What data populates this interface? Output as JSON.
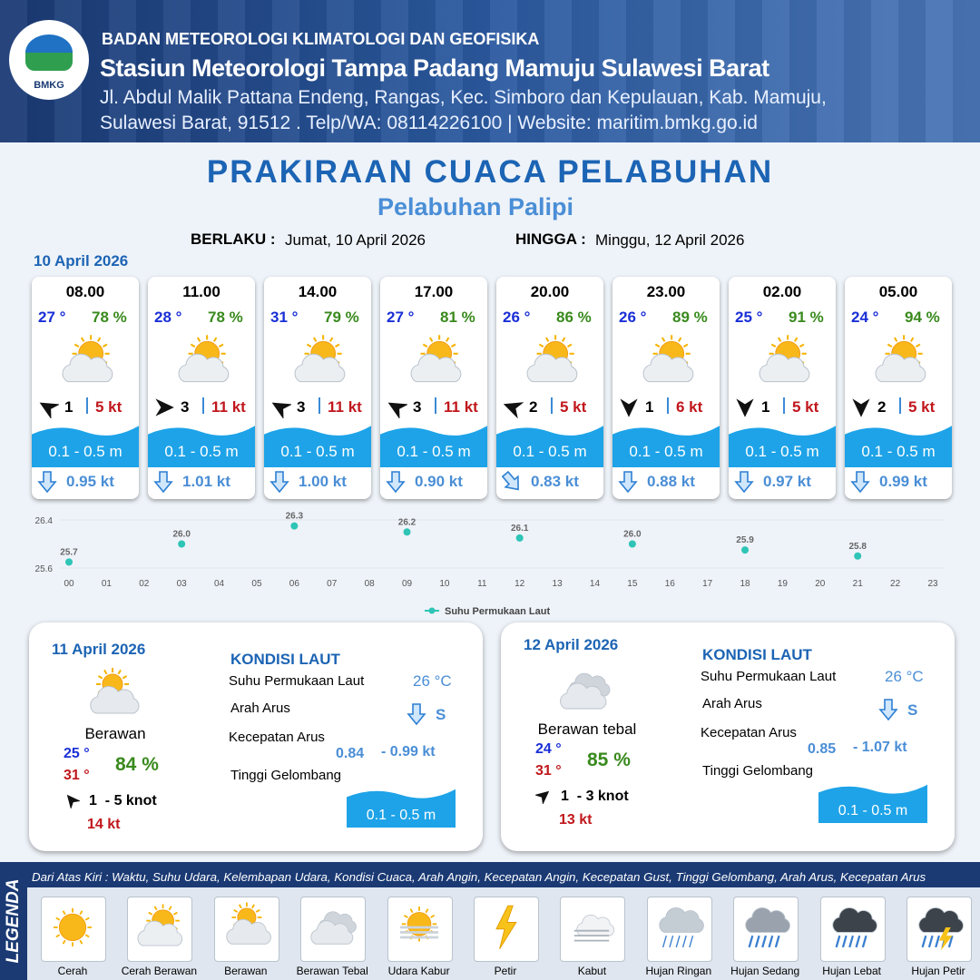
{
  "header": {
    "logo": "BMKG",
    "agency": "BADAN METEOROLOGI KLIMATOLOGI DAN GEOFISIKA",
    "station": "Stasiun Meteorologi Tampa Padang Mamuju Sulawesi Barat",
    "address_line1": "Jl. Abdul Malik Pattana Endeng, Rangas, Kec. Simboro dan Kepulauan, Kab. Mamuju,",
    "address_line2": "Sulawesi Barat, 91512 . Telp/WA: 08114226100 | Website: maritim.bmkg.go.id"
  },
  "title": "PRAKIRAAN CUACA PELABUHAN",
  "subtitle": "Pelabuhan Palipi",
  "validity": {
    "from_label": "BERLAKU :",
    "from": "Jumat, 10 April 2026",
    "to_label": "HINGGA :",
    "to": "Minggu, 12 April 2026"
  },
  "day1": {
    "date": "10 April 2026",
    "cards": [
      {
        "time": "08.00",
        "temp": "27 °",
        "humidity": "78 %",
        "wind": "1",
        "gust": "5 kt",
        "wave": "0.1 - 0.5 m",
        "current": "0.95 kt"
      },
      {
        "time": "11.00",
        "temp": "28 °",
        "humidity": "78 %",
        "wind": "3",
        "gust": "11 kt",
        "wave": "0.1 - 0.5 m",
        "current": "1.01 kt"
      },
      {
        "time": "14.00",
        "temp": "31 °",
        "humidity": "79 %",
        "wind": "3",
        "gust": "11 kt",
        "wave": "0.1 - 0.5 m",
        "current": "1.00 kt"
      },
      {
        "time": "17.00",
        "temp": "27 °",
        "humidity": "81 %",
        "wind": "3",
        "gust": "11 kt",
        "wave": "0.1 - 0.5 m",
        "current": "0.90 kt"
      },
      {
        "time": "20.00",
        "temp": "26 °",
        "humidity": "86 %",
        "wind": "2",
        "gust": "5 kt",
        "wave": "0.1 - 0.5 m",
        "current": "0.83 kt"
      },
      {
        "time": "23.00",
        "temp": "26 °",
        "humidity": "89 %",
        "wind": "1",
        "gust": "6 kt",
        "wave": "0.1 - 0.5 m",
        "current": "0.88 kt"
      },
      {
        "time": "02.00",
        "temp": "25 °",
        "humidity": "91 %",
        "wind": "1",
        "gust": "5 kt",
        "wave": "0.1 - 0.5 m",
        "current": "0.97 kt"
      },
      {
        "time": "05.00",
        "temp": "24 °",
        "humidity": "94 %",
        "wind": "2",
        "gust": "5 kt",
        "wave": "0.1 - 0.5 m",
        "current": "0.99 kt"
      }
    ]
  },
  "chart_data": {
    "type": "scatter",
    "categories": [
      "00",
      "01",
      "02",
      "03",
      "04",
      "05",
      "06",
      "07",
      "08",
      "09",
      "10",
      "11",
      "12",
      "13",
      "14",
      "15",
      "16",
      "17",
      "18",
      "19",
      "20",
      "21",
      "22",
      "23"
    ],
    "series": [
      {
        "name": "Suhu Permukaan Laut",
        "color": "#2ec4b6",
        "values": [
          25.7,
          null,
          null,
          26,
          null,
          null,
          26.3,
          null,
          null,
          26.2,
          null,
          null,
          26.1,
          null,
          null,
          26,
          null,
          null,
          25.9,
          null,
          null,
          25.8,
          null,
          null
        ],
        "value_labels": [
          "25.7",
          null,
          null,
          "26.0",
          null,
          null,
          "26.3",
          null,
          null,
          "26.2",
          null,
          null,
          "26.1",
          null,
          null,
          "26.0",
          null,
          null,
          "25.9",
          null,
          null,
          "25.8",
          null,
          null
        ]
      }
    ],
    "ylim": [
      25.6,
      26.4
    ],
    "yticks": [
      25.6,
      26.4
    ],
    "legend": "bottom"
  },
  "day2": {
    "date": "11 April 2026",
    "condition": "Berawan",
    "temp_min": "25 °",
    "temp_max": "31 °",
    "humidity": "84 %",
    "wind": "1  - 5 knot",
    "gust": "14 kt",
    "sea": {
      "heading": "KONDISI LAUT",
      "sst_label": "Suhu Permukaan Laut",
      "sst": "26 °C",
      "current_dir_label": "Arah Arus",
      "current_dir": "S",
      "current_speed_label": "Kecepatan Arus",
      "current_min": "0.84",
      "current_max": "- 0.99 kt",
      "wave_label": "Tinggi Gelombang",
      "wave": "0.1 - 0.5 m"
    }
  },
  "day3": {
    "date": "12 April 2026",
    "condition": "Berawan tebal",
    "temp_min": "24 °",
    "temp_max": "31 °",
    "humidity": "85 %",
    "wind": "1  - 3 knot",
    "gust": "13 kt",
    "sea": {
      "heading": "KONDISI LAUT",
      "sst_label": "Suhu Permukaan Laut",
      "sst": "26 °C",
      "current_dir_label": "Arah Arus",
      "current_dir": "S",
      "current_speed_label": "Kecepatan Arus",
      "current_min": "0.85",
      "current_max": "- 1.07 kt",
      "wave_label": "Tinggi Gelombang",
      "wave": "0.1 - 0.5 m"
    }
  },
  "legend": {
    "heading": "LEGENDA",
    "description": "Dari Atas Kiri : Waktu, Suhu Udara, Kelembapan Udara, Kondisi Cuaca, Arah Angin, Kecepatan Angin, Kecepatan Gust, Tinggi Gelombang, Arah Arus, Kecepatan Arus",
    "items": [
      "Cerah",
      "Cerah Berawan",
      "Berawan",
      "Berawan Tebal",
      "Udara Kabur",
      "Petir",
      "Kabut",
      "Hujan Ringan",
      "Hujan Sedang",
      "Hujan Lebat",
      "Hujan Petir"
    ]
  }
}
